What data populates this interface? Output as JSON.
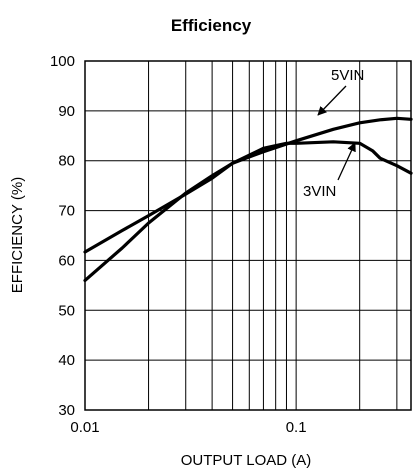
{
  "chart_data": {
    "type": "line",
    "title": "Efficiency",
    "xlabel": "OUTPUT LOAD (A)",
    "ylabel": "EFFICIENCY (%)",
    "xscale": "log",
    "xlim": [
      0.01,
      0.35
    ],
    "ylim": [
      30,
      100
    ],
    "grid": true,
    "x_tick_labels": [
      "0.01",
      "0.1"
    ],
    "y_tick_labels": [
      "30",
      "40",
      "50",
      "60",
      "70",
      "80",
      "90",
      "100"
    ],
    "series": [
      {
        "name": "5VIN",
        "x": [
          0.01,
          0.015,
          0.02,
          0.03,
          0.04,
          0.05,
          0.07,
          0.1,
          0.15,
          0.2,
          0.25,
          0.3,
          0.35
        ],
        "y": [
          56.0,
          62.5,
          67.5,
          73.5,
          77.0,
          79.5,
          81.8,
          84.0,
          86.3,
          87.6,
          88.2,
          88.5,
          88.3
        ]
      },
      {
        "name": "3VIN",
        "x": [
          0.01,
          0.015,
          0.02,
          0.03,
          0.04,
          0.05,
          0.07,
          0.09,
          0.1,
          0.15,
          0.2,
          0.23,
          0.25,
          0.3,
          0.35
        ],
        "y": [
          61.7,
          66.0,
          69.0,
          73.3,
          76.5,
          79.5,
          82.5,
          83.5,
          83.5,
          83.8,
          83.5,
          82.0,
          80.5,
          79.0,
          77.5
        ]
      }
    ],
    "annotations": [
      {
        "text": "5VIN",
        "points_to_series": "5VIN"
      },
      {
        "text": "3VIN",
        "points_to_series": "3VIN"
      }
    ]
  }
}
